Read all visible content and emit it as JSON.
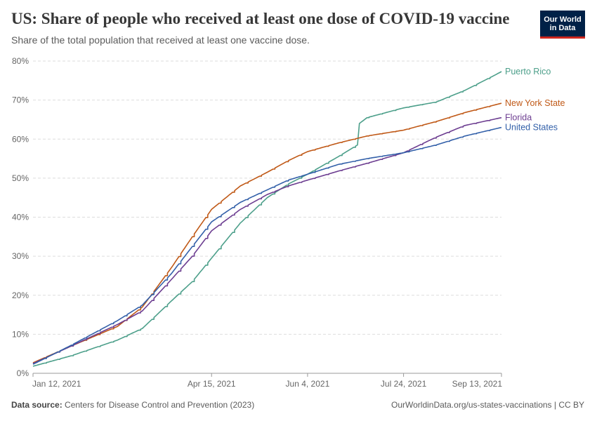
{
  "header": {
    "title": "US: Share of people who received at least one dose of COVID-19 vaccine",
    "subtitle": "Share of the total population that received at least one vaccine dose.",
    "logo_line1": "Our World",
    "logo_line2": "in Data"
  },
  "footer": {
    "source_label": "Data source:",
    "source_text": "Centers for Disease Control and Prevention (2023)",
    "link": "OurWorldinData.org/us-states-vaccinations | CC BY"
  },
  "colors": {
    "puerto_rico": "#4c9f8a",
    "new_york": "#c05917",
    "florida": "#6d3e91",
    "united_states": "#3360a9",
    "grid": "#dddddd",
    "logo_bg": "#002147",
    "logo_accent": "#ce261e"
  },
  "chart_data": {
    "type": "line",
    "title": "US: Share of people who received at least one dose of COVID-19 vaccine",
    "ylabel": "",
    "xlabel": "",
    "ylim": [
      0,
      80
    ],
    "xlim": [
      "2021-01-12",
      "2021-09-13"
    ],
    "y_ticks": [
      0,
      10,
      20,
      30,
      40,
      50,
      60,
      70,
      80
    ],
    "y_tick_labels": [
      "0%",
      "10%",
      "20%",
      "30%",
      "40%",
      "50%",
      "60%",
      "70%",
      "80%"
    ],
    "x_ticks": [
      "2021-01-12",
      "2021-04-15",
      "2021-06-04",
      "2021-07-24",
      "2021-09-13"
    ],
    "x_tick_labels": [
      "Jan 12, 2021",
      "Apr 15, 2021",
      "Jun 4, 2021",
      "Jul 24, 2021",
      "Sep 13, 2021"
    ],
    "grid": "horizontal dashed",
    "legend": "right, labels at line ends",
    "series": [
      {
        "name": "Puerto Rico",
        "color": "#4c9f8a",
        "points": [
          [
            "2021-01-12",
            1.8
          ],
          [
            "2021-02-01",
            4.5
          ],
          [
            "2021-02-25",
            8.5
          ],
          [
            "2021-03-10",
            11.5
          ],
          [
            "2021-03-25",
            18.5
          ],
          [
            "2021-04-05",
            23.5
          ],
          [
            "2021-04-15",
            29.5
          ],
          [
            "2021-04-30",
            38.5
          ],
          [
            "2021-05-14",
            45.0
          ],
          [
            "2021-05-25",
            48.5
          ],
          [
            "2021-06-04",
            51.0
          ],
          [
            "2021-06-20",
            55.5
          ],
          [
            "2021-06-30",
            58.5
          ],
          [
            "2021-07-01",
            64.0
          ],
          [
            "2021-07-05",
            65.5
          ],
          [
            "2021-07-24",
            68.0
          ],
          [
            "2021-08-10",
            69.5
          ],
          [
            "2021-08-25",
            72.5
          ],
          [
            "2021-09-08",
            76.0
          ],
          [
            "2021-09-13",
            77.3
          ]
        ]
      },
      {
        "name": "New York State",
        "color": "#c05917",
        "points": [
          [
            "2021-01-12",
            2.7
          ],
          [
            "2021-02-01",
            7.0
          ],
          [
            "2021-02-25",
            12.0
          ],
          [
            "2021-03-10",
            17.0
          ],
          [
            "2021-03-25",
            27.0
          ],
          [
            "2021-04-05",
            35.0
          ],
          [
            "2021-04-15",
            42.0
          ],
          [
            "2021-04-30",
            48.0
          ],
          [
            "2021-05-14",
            51.5
          ],
          [
            "2021-05-25",
            54.5
          ],
          [
            "2021-06-04",
            56.8
          ],
          [
            "2021-06-20",
            59.0
          ],
          [
            "2021-07-05",
            60.8
          ],
          [
            "2021-07-24",
            62.3
          ],
          [
            "2021-08-10",
            64.5
          ],
          [
            "2021-08-25",
            66.8
          ],
          [
            "2021-09-13",
            69.2
          ]
        ]
      },
      {
        "name": "Florida",
        "color": "#6d3e91",
        "points": [
          [
            "2021-01-12",
            2.5
          ],
          [
            "2021-02-01",
            7.0
          ],
          [
            "2021-02-25",
            12.5
          ],
          [
            "2021-03-10",
            16.0
          ],
          [
            "2021-03-25",
            24.0
          ],
          [
            "2021-04-05",
            30.0
          ],
          [
            "2021-04-15",
            36.5
          ],
          [
            "2021-04-30",
            42.0
          ],
          [
            "2021-05-14",
            45.8
          ],
          [
            "2021-05-25",
            48.0
          ],
          [
            "2021-06-04",
            49.5
          ],
          [
            "2021-06-20",
            51.8
          ],
          [
            "2021-07-05",
            53.8
          ],
          [
            "2021-07-24",
            56.5
          ],
          [
            "2021-08-10",
            60.5
          ],
          [
            "2021-08-25",
            63.5
          ],
          [
            "2021-09-13",
            65.5
          ]
        ]
      },
      {
        "name": "United States",
        "color": "#3360a9",
        "points": [
          [
            "2021-01-12",
            2.3
          ],
          [
            "2021-02-01",
            7.2
          ],
          [
            "2021-02-25",
            13.5
          ],
          [
            "2021-03-10",
            17.5
          ],
          [
            "2021-03-25",
            25.5
          ],
          [
            "2021-04-05",
            32.5
          ],
          [
            "2021-04-15",
            38.8
          ],
          [
            "2021-04-30",
            43.8
          ],
          [
            "2021-05-14",
            47.0
          ],
          [
            "2021-05-25",
            49.5
          ],
          [
            "2021-06-04",
            51.0
          ],
          [
            "2021-06-20",
            53.5
          ],
          [
            "2021-07-05",
            55.0
          ],
          [
            "2021-07-24",
            56.5
          ],
          [
            "2021-08-10",
            58.5
          ],
          [
            "2021-08-25",
            60.8
          ],
          [
            "2021-09-13",
            63.0
          ]
        ]
      }
    ]
  }
}
